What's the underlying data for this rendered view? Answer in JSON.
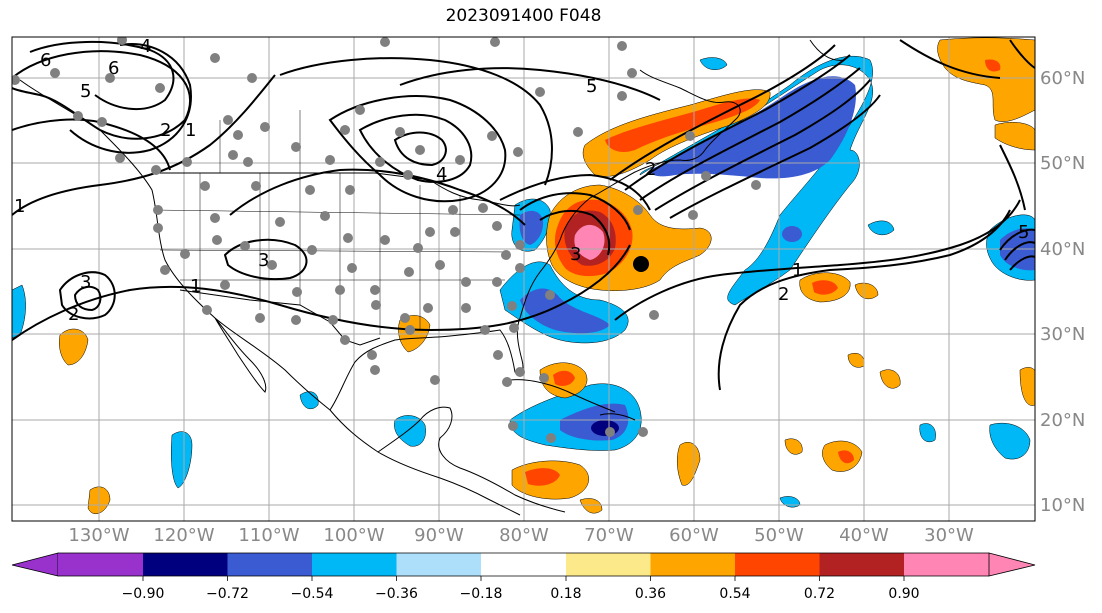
{
  "title": "2023091400 F048",
  "colors": {
    "c_m090": "#9932CC",
    "c_m072": "#00007F",
    "c_m054": "#3A5BD1",
    "c_m036": "#00B8F5",
    "c_m018": "#ADDFFA",
    "c_mid": "#FFFFFF",
    "c_p018": "#FCE98A",
    "c_p036": "#FFA500",
    "c_p054": "#FF4500",
    "c_p072": "#B22222",
    "c_p090": "#FF85B4",
    "grid": "#AAAAAA",
    "station": "#808080"
  },
  "lat_labels": [
    "60°N",
    "50°N",
    "40°N",
    "30°N",
    "20°N",
    "10°N"
  ],
  "lon_labels": [
    "130°W",
    "120°W",
    "110°W",
    "100°W",
    "90°W",
    "80°W",
    "70°W",
    "60°W",
    "50°W",
    "40°W",
    "30°W"
  ],
  "colorbar_ticks": [
    "−0.90",
    "−0.72",
    "−0.54",
    "−0.36",
    "−0.18",
    "0.18",
    "0.36",
    "0.54",
    "0.72",
    "0.90"
  ],
  "contour_labels": [
    "6",
    "6",
    "5",
    "2",
    "1",
    "1",
    "3",
    "3",
    "2",
    "1",
    "5",
    "4",
    "2",
    "3",
    "1",
    "2",
    "5",
    "4"
  ]
}
